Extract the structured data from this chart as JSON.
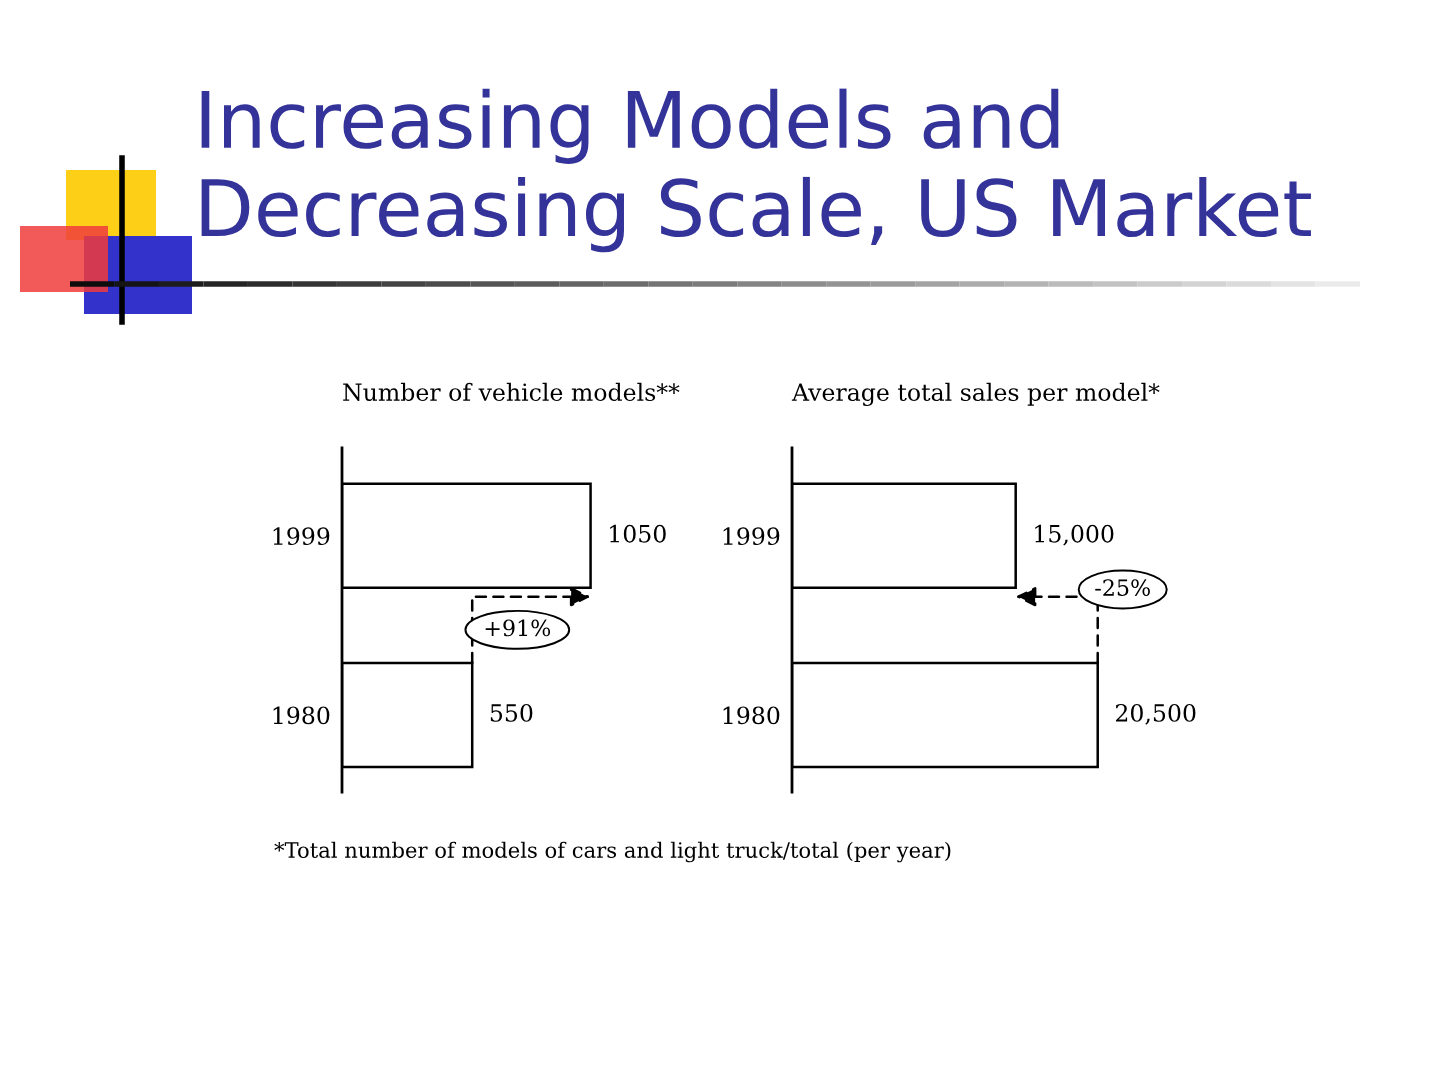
{
  "chart_data": [
    {
      "type": "other",
      "title": "Increasing Models and Decreasing Scale, US Market",
      "annotations": [
        "*Total number of models of cars and light truck/total (per year)"
      ]
    },
    {
      "type": "bar",
      "orientation": "horizontal",
      "title": "Number of vehicle models**",
      "categories": [
        "1999",
        "1980"
      ],
      "values": [
        1050,
        550
      ],
      "color": "#ffffff",
      "data_labels": true,
      "tick_labels": "y",
      "annotations": [
        "+91%"
      ]
    },
    {
      "type": "bar",
      "orientation": "horizontal",
      "title": "Average total sales per model*",
      "categories": [
        "1999",
        "1980"
      ],
      "values": [
        15000,
        20500
      ],
      "color": "#ffffff",
      "value_labels": [
        "15,000",
        "20,500"
      ],
      "tick_labels": "y",
      "annotations": [
        "-25%"
      ]
    }
  ]
}
